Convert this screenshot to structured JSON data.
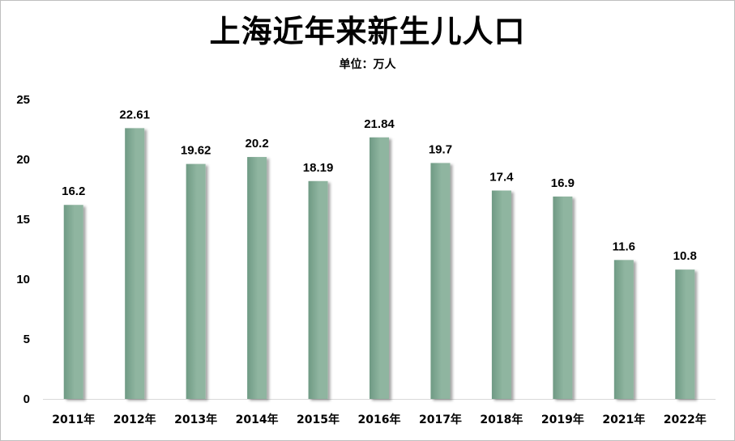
{
  "chart_data": {
    "type": "bar",
    "title": "上海近年来新生儿人口",
    "subtitle": "单位：万人",
    "categories": [
      "2011年",
      "2012年",
      "2013年",
      "2014年",
      "2015年",
      "2016年",
      "2017年",
      "2018年",
      "2019年",
      "2021年",
      "2022年"
    ],
    "values": [
      16.2,
      22.61,
      19.62,
      20.2,
      18.19,
      21.84,
      19.7,
      17.4,
      16.9,
      11.6,
      10.8
    ],
    "value_labels": [
      "16.2",
      "22.61",
      "19.62",
      "20.2",
      "18.19",
      "21.84",
      "19.7",
      "17.4",
      "16.9",
      "11.6",
      "10.8"
    ],
    "xlabel": "",
    "ylabel": "",
    "ylim": [
      0,
      25
    ],
    "yticks": [
      "0",
      "5",
      "10",
      "15",
      "20",
      "25"
    ],
    "grid": false,
    "legend": "none",
    "bar_color": "#8fb5a0",
    "bar_color_dark": "#6f9a84"
  }
}
